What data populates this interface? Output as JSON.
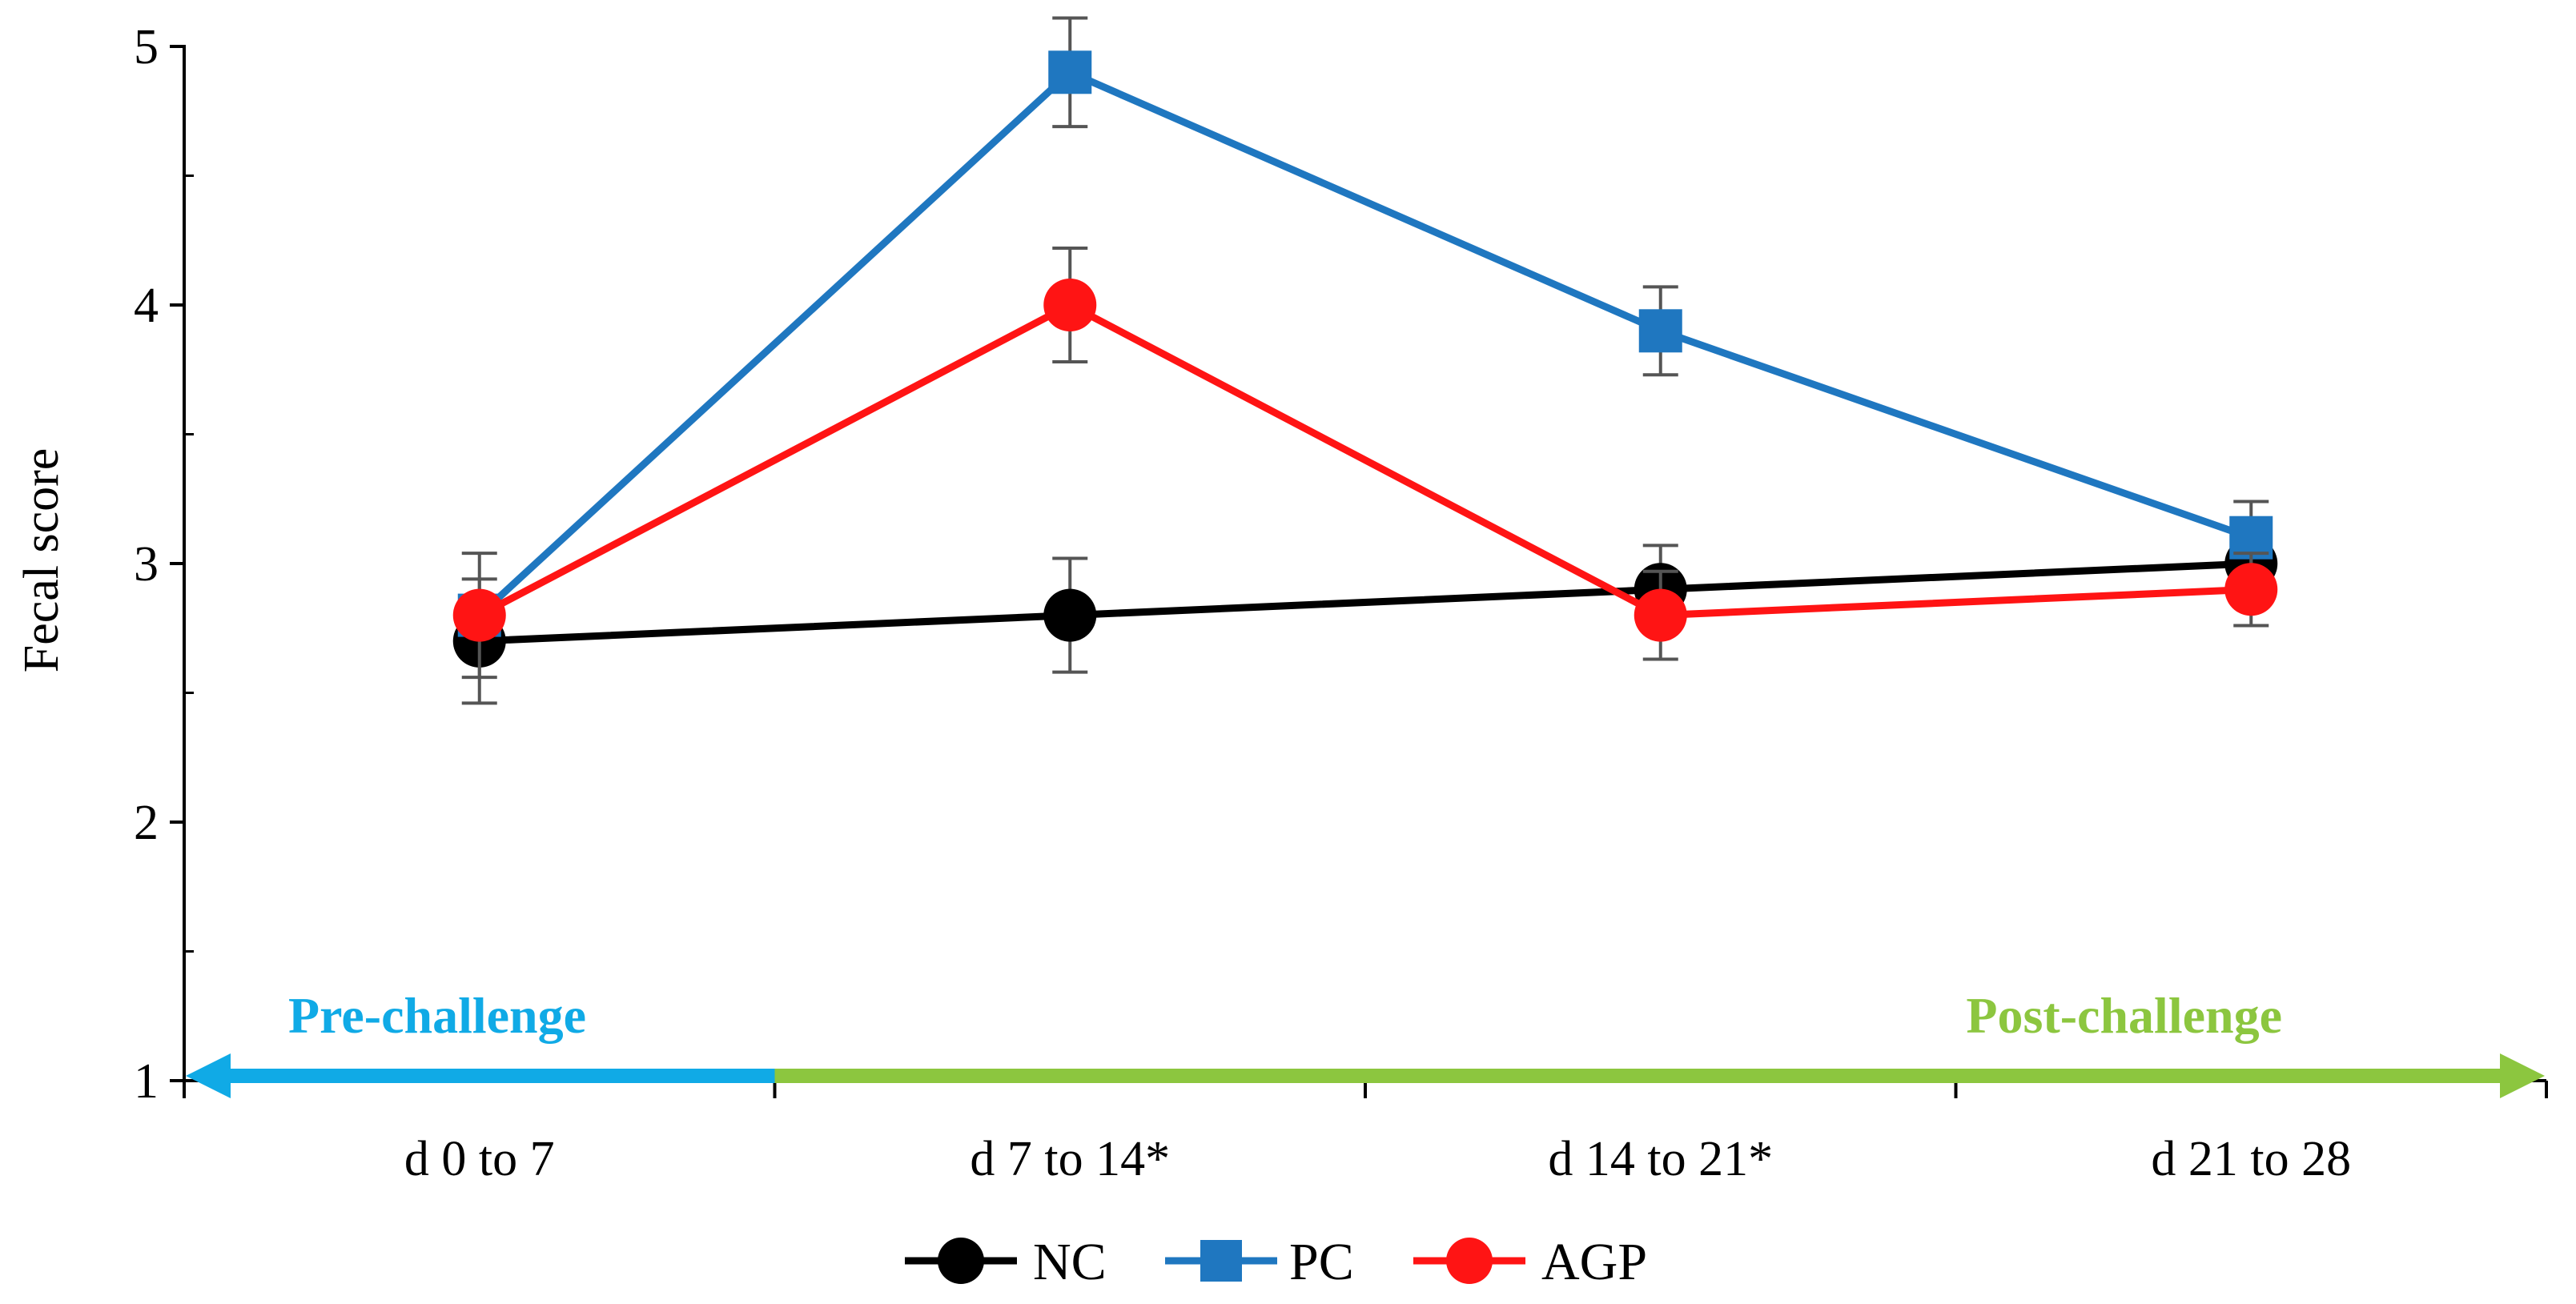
{
  "chart_data": {
    "type": "line",
    "title": "",
    "xlabel": "",
    "ylabel": "Fecal score",
    "ylim": [
      1,
      5
    ],
    "yticks": [
      1,
      2,
      3,
      4,
      5
    ],
    "categories": [
      "d 0 to 7",
      "d 7 to 14*",
      "d 14 to 21*",
      "d 21 to 28"
    ],
    "grid": false,
    "legend_position": "bottom-center",
    "series": [
      {
        "name": "NC",
        "color": "#000000",
        "marker": "circle",
        "values": [
          2.7,
          2.8,
          2.9,
          3.0
        ],
        "errors": [
          0.24,
          0.22,
          0.17,
          0.0
        ]
      },
      {
        "name": "PC",
        "color": "#1f77c0",
        "marker": "square",
        "values": [
          2.8,
          4.9,
          3.9,
          3.1
        ],
        "errors": [
          0.0,
          0.21,
          0.17,
          0.14
        ]
      },
      {
        "name": "AGP",
        "color": "#ff1414",
        "marker": "circle",
        "values": [
          2.8,
          4.0,
          2.8,
          2.9
        ],
        "errors": [
          0.24,
          0.22,
          0.17,
          0.14
        ]
      }
    ],
    "annotations": {
      "pre": {
        "label": "Pre-challenge",
        "color": "#10aae6",
        "from": "left",
        "to": "between d 0 to 7 and d 7 to 14*"
      },
      "post": {
        "label": "Post-challenge",
        "color": "#8cc63f",
        "from": "between d 0 to 7 and d 7 to 14*",
        "to": "right"
      }
    }
  }
}
